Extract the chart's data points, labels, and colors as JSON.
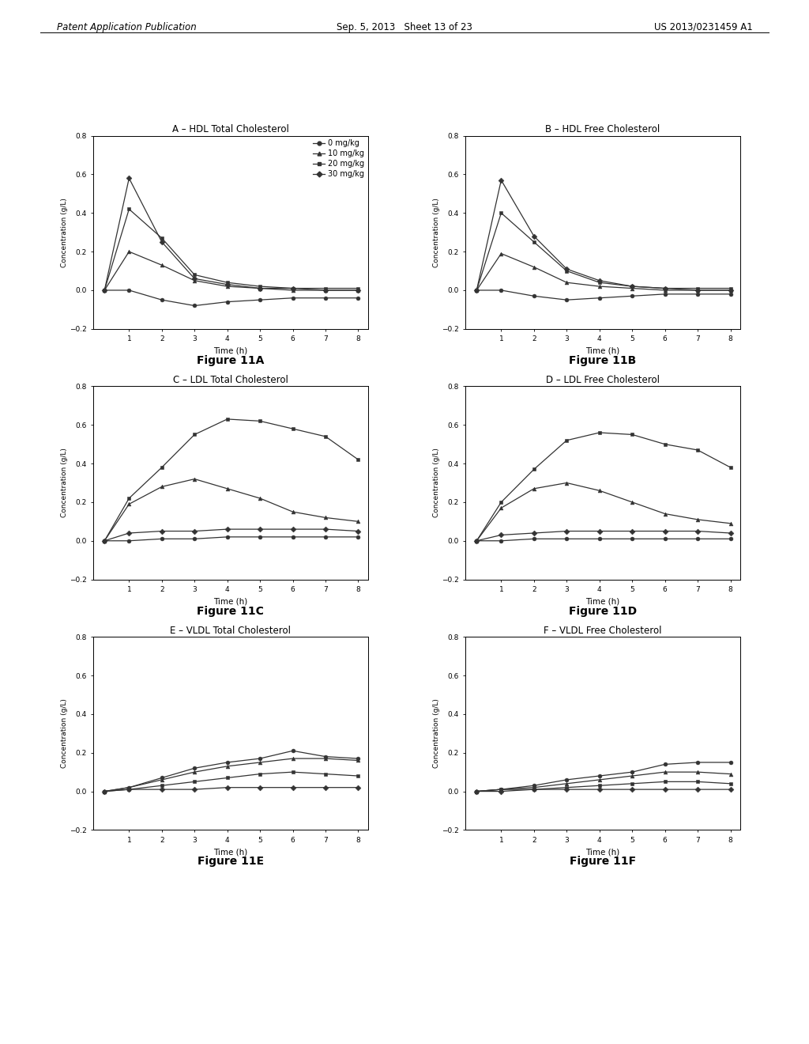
{
  "header_left": "Patent Application Publication",
  "header_center": "Sep. 5, 2013   Sheet 13 of 23",
  "header_right": "US 2013/0231459 A1",
  "time_points": [
    0.25,
    1,
    2,
    3,
    4,
    5,
    6,
    7,
    8
  ],
  "legend_labels": [
    "0 mg/kg",
    "10 mg/kg",
    "20 mg/kg",
    "30 mg/kg"
  ],
  "panels": [
    {
      "title": "A – HDL Total Cholesterol",
      "fig_label": "Figure 11A",
      "series": [
        [
          0.0,
          0.0,
          -0.05,
          -0.08,
          -0.06,
          -0.05,
          -0.04,
          -0.04,
          -0.04
        ],
        [
          0.0,
          0.2,
          0.13,
          0.05,
          0.02,
          0.01,
          0.0,
          0.0,
          0.0
        ],
        [
          0.0,
          0.42,
          0.27,
          0.08,
          0.04,
          0.02,
          0.01,
          0.01,
          0.01
        ],
        [
          0.0,
          0.58,
          0.25,
          0.06,
          0.03,
          0.01,
          0.01,
          0.0,
          0.0
        ]
      ],
      "ylim": [
        -0.2,
        0.8
      ],
      "show_legend": true
    },
    {
      "title": "B – HDL Free Cholesterol",
      "fig_label": "Figure 11B",
      "series": [
        [
          0.0,
          0.0,
          -0.03,
          -0.05,
          -0.04,
          -0.03,
          -0.02,
          -0.02,
          -0.02
        ],
        [
          0.0,
          0.19,
          0.12,
          0.04,
          0.02,
          0.01,
          0.0,
          0.0,
          0.0
        ],
        [
          0.0,
          0.4,
          0.25,
          0.1,
          0.04,
          0.02,
          0.01,
          0.01,
          0.01
        ],
        [
          0.0,
          0.57,
          0.28,
          0.11,
          0.05,
          0.02,
          0.01,
          0.0,
          0.0
        ]
      ],
      "ylim": [
        -0.2,
        0.8
      ],
      "show_legend": false
    },
    {
      "title": "C – LDL Total Cholesterol",
      "fig_label": "Figure 11C",
      "series": [
        [
          0.0,
          0.0,
          0.01,
          0.01,
          0.02,
          0.02,
          0.02,
          0.02,
          0.02
        ],
        [
          0.0,
          0.19,
          0.28,
          0.32,
          0.27,
          0.22,
          0.15,
          0.12,
          0.1
        ],
        [
          0.0,
          0.22,
          0.38,
          0.55,
          0.63,
          0.62,
          0.58,
          0.54,
          0.42
        ],
        [
          0.0,
          0.04,
          0.05,
          0.05,
          0.06,
          0.06,
          0.06,
          0.06,
          0.05
        ]
      ],
      "ylim": [
        -0.2,
        0.8
      ],
      "show_legend": false
    },
    {
      "title": "D – LDL Free Cholesterol",
      "fig_label": "Figure 11D",
      "series": [
        [
          0.0,
          0.0,
          0.01,
          0.01,
          0.01,
          0.01,
          0.01,
          0.01,
          0.01
        ],
        [
          0.0,
          0.17,
          0.27,
          0.3,
          0.26,
          0.2,
          0.14,
          0.11,
          0.09
        ],
        [
          0.0,
          0.2,
          0.37,
          0.52,
          0.56,
          0.55,
          0.5,
          0.47,
          0.38
        ],
        [
          0.0,
          0.03,
          0.04,
          0.05,
          0.05,
          0.05,
          0.05,
          0.05,
          0.04
        ]
      ],
      "ylim": [
        -0.2,
        0.8
      ],
      "show_legend": false
    },
    {
      "title": "E – VLDL Total Cholesterol",
      "fig_label": "Figure 11E",
      "series": [
        [
          0.0,
          0.02,
          0.07,
          0.12,
          0.15,
          0.17,
          0.21,
          0.18,
          0.17
        ],
        [
          0.0,
          0.02,
          0.06,
          0.1,
          0.13,
          0.15,
          0.17,
          0.17,
          0.16
        ],
        [
          0.0,
          0.01,
          0.03,
          0.05,
          0.07,
          0.09,
          0.1,
          0.09,
          0.08
        ],
        [
          0.0,
          0.01,
          0.01,
          0.01,
          0.02,
          0.02,
          0.02,
          0.02,
          0.02
        ]
      ],
      "ylim": [
        -0.2,
        0.8
      ],
      "show_legend": false
    },
    {
      "title": "F – VLDL Free Cholesterol",
      "fig_label": "Figure 11F",
      "series": [
        [
          0.0,
          0.01,
          0.03,
          0.06,
          0.08,
          0.1,
          0.14,
          0.15,
          0.15
        ],
        [
          0.0,
          0.01,
          0.02,
          0.04,
          0.06,
          0.08,
          0.1,
          0.1,
          0.09
        ],
        [
          0.0,
          0.01,
          0.01,
          0.02,
          0.03,
          0.04,
          0.05,
          0.05,
          0.04
        ],
        [
          0.0,
          0.0,
          0.01,
          0.01,
          0.01,
          0.01,
          0.01,
          0.01,
          0.01
        ]
      ],
      "ylim": [
        -0.2,
        0.8
      ],
      "show_legend": false
    }
  ],
  "markers": [
    "o",
    "^",
    "s",
    "D"
  ],
  "line_color": "#333333",
  "background_color": "#ffffff",
  "xlabel": "Time (h)",
  "ylabel": "Concentration (g/L)",
  "yticks": [
    -0.2,
    0.0,
    0.2,
    0.4,
    0.6,
    0.8
  ],
  "xticks": [
    1,
    2,
    3,
    4,
    5,
    6,
    7,
    8
  ]
}
